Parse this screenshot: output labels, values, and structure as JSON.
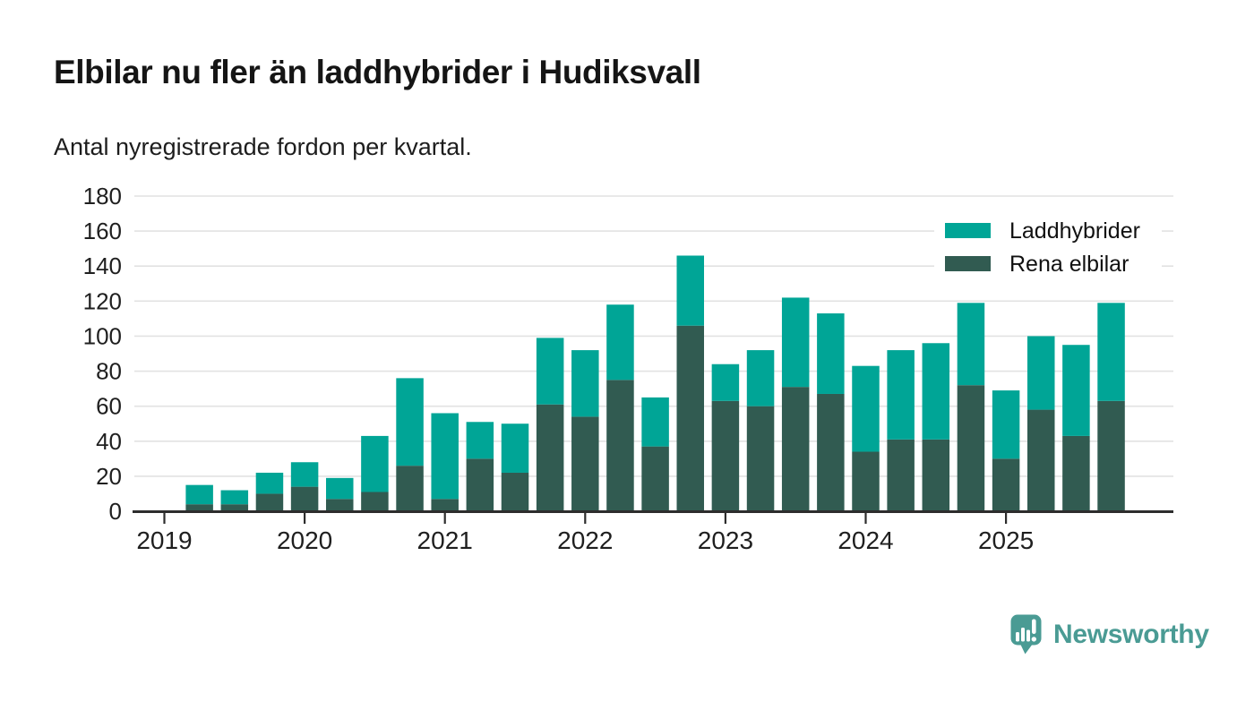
{
  "chart_data": {
    "type": "bar",
    "stacked": true,
    "title": "Elbilar nu fler än laddhybrider i Hudiksvall",
    "subtitle": "Antal nyregistrerade fordon per kvartal.",
    "categories": [
      "Q2 2019",
      "Q3 2019",
      "Q4 2019",
      "Q1 2020",
      "Q2 2020",
      "Q3 2020",
      "Q4 2020",
      "Q1 2021",
      "Q2 2021",
      "Q3 2021",
      "Q4 2021",
      "Q1 2022",
      "Q2 2022",
      "Q3 2022",
      "Q4 2022",
      "Q1 2023",
      "Q2 2023",
      "Q3 2023",
      "Q4 2023",
      "Q1 2024",
      "Q2 2024",
      "Q3 2024",
      "Q4 2024",
      "Q1 2025",
      "Q2 2025",
      "Q3 2025",
      "Q4 2025"
    ],
    "series": [
      {
        "name": "Laddhybrider",
        "color": "#00a596",
        "stack_position": "top",
        "values": [
          11,
          8,
          12,
          14,
          12,
          32,
          50,
          49,
          21,
          28,
          38,
          38,
          43,
          28,
          40,
          21,
          32,
          51,
          46,
          49,
          51,
          55,
          47,
          39,
          42,
          52,
          56
        ]
      },
      {
        "name": "Rena elbilar",
        "color": "#315b51",
        "stack_position": "bottom",
        "values": [
          4,
          4,
          10,
          14,
          7,
          11,
          26,
          7,
          30,
          22,
          61,
          54,
          75,
          37,
          106,
          63,
          60,
          71,
          67,
          34,
          41,
          41,
          72,
          30,
          58,
          43,
          63
        ]
      }
    ],
    "stack_totals": [
      15,
      12,
      22,
      28,
      19,
      43,
      76,
      56,
      51,
      50,
      99,
      92,
      118,
      65,
      146,
      84,
      92,
      122,
      113,
      83,
      92,
      96,
      119,
      69,
      100,
      95,
      119
    ],
    "x_tick_labels": [
      "2019",
      "2020",
      "2021",
      "2022",
      "2023",
      "2024",
      "2025"
    ],
    "y_ticks": [
      0,
      20,
      40,
      60,
      80,
      100,
      120,
      140,
      160,
      180
    ],
    "ylim": [
      0,
      180
    ],
    "grid": true,
    "legend_position": "top-right"
  },
  "legend": {
    "items": [
      {
        "label": "Laddhybrider",
        "color": "#00a596"
      },
      {
        "label": "Rena elbilar",
        "color": "#315b51"
      }
    ]
  },
  "colors": {
    "laddhybrider": "#00a596",
    "rena_elbilar": "#315b51",
    "gridline": "#e2e2e2",
    "axis": "#2d2d2d",
    "tick_text": "#1f1f1f",
    "background": "#ffffff",
    "brand_teal": "#4a9b94"
  },
  "footer": {
    "brand": "Newsworthy"
  }
}
